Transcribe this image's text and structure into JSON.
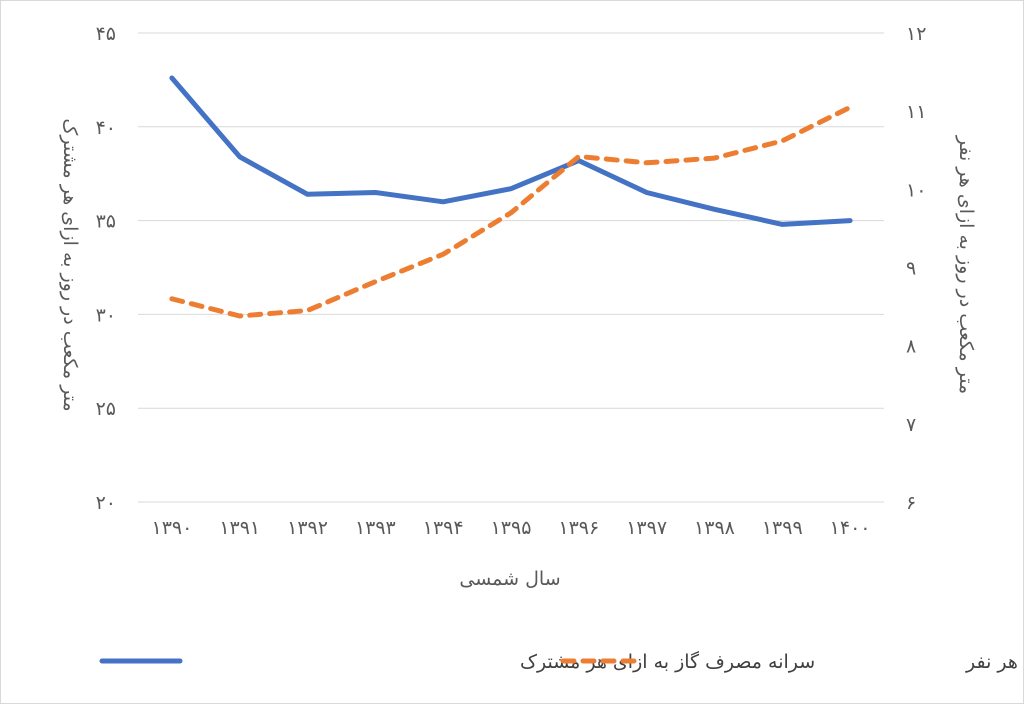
{
  "chart_data": {
    "type": "line",
    "xlabel": "سال شمسی",
    "ylabel_left": "متر مکعب در روز به ازای هر مشترک",
    "ylabel_right": "متر مکعب در روز به ازای هر نفر",
    "categories": [
      "۱۳۹۰",
      "۱۳۹۱",
      "۱۳۹۲",
      "۱۳۹۳",
      "۱۳۹۴",
      "۱۳۹۵",
      "۱۳۹۶",
      "۱۳۹۷",
      "۱۳۹۸",
      "۱۳۹۹",
      "۱۴۰۰"
    ],
    "y_left": {
      "range": [
        20,
        45
      ],
      "ticks": [
        20,
        25,
        30,
        35,
        40,
        45
      ],
      "tick_labels": [
        "۲۰",
        "۲۵",
        "۳۰",
        "۳۵",
        "۴۰",
        "۴۵"
      ]
    },
    "y_right": {
      "range": [
        6,
        12
      ],
      "ticks": [
        6,
        7,
        8,
        9,
        10,
        11,
        12
      ],
      "tick_labels": [
        "۶",
        "۷",
        "۸",
        "۹",
        "۱۰",
        "۱۱",
        "۱۲"
      ]
    },
    "grid": true,
    "legend_position": "bottom",
    "series": [
      {
        "name": "سرانه مصرف گاز به ازای هر مشترک",
        "axis": "left",
        "style": "solid",
        "color": "#4472C4",
        "values": [
          42.6,
          38.4,
          36.4,
          36.5,
          36.0,
          36.7,
          38.2,
          36.5,
          35.6,
          34.8,
          35.0
        ]
      },
      {
        "name": "سرانه مصرف گاز به ازای هر نفر",
        "axis": "right",
        "style": "dashed",
        "color": "#ED7D31",
        "values": [
          8.6,
          8.38,
          8.45,
          8.82,
          9.17,
          9.7,
          10.42,
          10.34,
          10.4,
          10.62,
          11.05
        ]
      }
    ]
  }
}
